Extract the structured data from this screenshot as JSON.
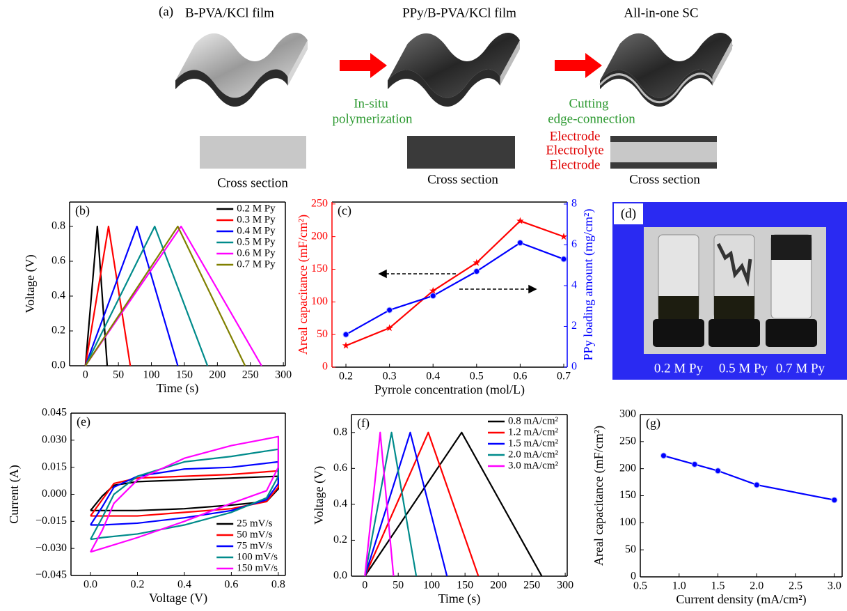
{
  "panel_a": {
    "label": "(a)",
    "titles": [
      "B-PVA/KCl film",
      "PPy/B-PVA/KCl film",
      "All-in-one SC"
    ],
    "steps": [
      [
        "In-situ",
        "polymerization"
      ],
      [
        "Cutting",
        "edge-connection"
      ]
    ],
    "cross_section": [
      "Cross section",
      "Cross section",
      "Cross section"
    ],
    "layers": [
      "Electrode",
      "Electrolyte",
      "Electrode"
    ]
  },
  "panel_d": {
    "label": "(d)",
    "captions": [
      "0.2 M Py",
      "0.5 M Py",
      "0.7 M Py"
    ]
  },
  "chart_data": [
    {
      "type": "line",
      "label": "(b)",
      "xlabel": "Time (s)",
      "ylabel": "Voltage (V)",
      "xlim": [
        -24,
        303
      ],
      "xticks": [
        0,
        50,
        100,
        150,
        200,
        250,
        300
      ],
      "ylim": [
        0,
        0.94
      ],
      "yticks": [
        {
          "value": 0,
          "label": "0.0"
        },
        0.2,
        0.4,
        0.6,
        0.8
      ],
      "legend": "upper right",
      "series": [
        {
          "name": "0.2 M Py",
          "color": "#000000",
          "x": [
            0,
            18,
            33
          ],
          "values": [
            0,
            0.8,
            0
          ]
        },
        {
          "name": "0.3 M Py",
          "color": "#ff0000",
          "x": [
            0,
            35,
            68
          ],
          "values": [
            0,
            0.8,
            0
          ]
        },
        {
          "name": "0.4 M Py",
          "color": "#0000ff",
          "x": [
            0,
            78,
            140
          ],
          "values": [
            0,
            0.8,
            0
          ]
        },
        {
          "name": "0.5 M Py",
          "color": "#008b8b",
          "x": [
            0,
            105,
            185
          ],
          "values": [
            0,
            0.8,
            0
          ]
        },
        {
          "name": "0.6 M Py",
          "color": "#ff00ff",
          "x": [
            0,
            145,
            267
          ],
          "values": [
            0,
            0.8,
            0
          ]
        },
        {
          "name": "0.7 M Py",
          "color": "#808000",
          "x": [
            0,
            140,
            242
          ],
          "values": [
            0,
            0.8,
            0
          ]
        }
      ]
    },
    {
      "type": "line",
      "label": "(c)",
      "xlabel": "Pyrrole concentration (mol/L)",
      "ylabel": "Areal capacitance (mF/cm²)",
      "y2label": "PPy loading amount (mg/cm²)",
      "x": [
        0.2,
        0.3,
        0.4,
        0.5,
        0.6,
        0.7
      ],
      "xlim": [
        0.168,
        0.708
      ],
      "xticks": [
        0.2,
        0.3,
        0.4,
        0.5,
        0.6,
        0.7
      ],
      "ylim": [
        0,
        253
      ],
      "yticks": [
        0,
        50,
        100,
        150,
        200,
        250
      ],
      "y2lim": [
        0,
        8.1
      ],
      "y2ticks": [
        0,
        2,
        4,
        6,
        8
      ],
      "series": [
        {
          "color": "#ff0000",
          "marker": "star",
          "values": [
            33,
            60,
            117,
            160,
            224,
            200
          ]
        },
        {
          "color": "#0000ff",
          "marker": "circle",
          "axis": "y2",
          "values": [
            1.6,
            2.8,
            3.5,
            4.7,
            6.1,
            5.3
          ]
        }
      ]
    },
    {
      "type": "line",
      "label": "(e)",
      "xlabel": "Voltage (V)",
      "ylabel": "Current (A)",
      "x": [
        0,
        0.05,
        0.1,
        0.2,
        0.4,
        0.6,
        0.8,
        0.8,
        0.75,
        0.6,
        0.4,
        0.2,
        0.05,
        0
      ],
      "xlim": [
        -0.083,
        0.83
      ],
      "xticks": [
        {
          "value": 0,
          "label": "0.0"
        },
        0.2,
        0.4,
        0.6,
        0.8
      ],
      "ylim": [
        -0.045,
        0.045
      ],
      "yticks": [
        {
          "value": -0.045,
          "label": "−0.045"
        },
        {
          "value": -0.03,
          "label": "−0.030"
        },
        {
          "value": -0.015,
          "label": "−0.015"
        },
        {
          "value": 0,
          "label": "0.000"
        },
        {
          "value": 0.015,
          "label": "0.015"
        },
        {
          "value": 0.03,
          "label": "0.030"
        },
        {
          "value": 0.045,
          "label": "0.045"
        }
      ],
      "legend": "lower right",
      "series": [
        {
          "name": "25 mV/s",
          "color": "#000000",
          "values": [
            -0.009,
            -0.001,
            0.005,
            0.007,
            0.008,
            0.009,
            0.01,
            0.003,
            -0.004,
            -0.006,
            -0.008,
            -0.009,
            -0.009,
            -0.009
          ]
        },
        {
          "name": "50 mV/s",
          "color": "#ff0000",
          "values": [
            -0.012,
            -0.003,
            0.006,
            0.009,
            0.01,
            0.011,
            0.013,
            0.004,
            -0.004,
            -0.008,
            -0.01,
            -0.012,
            -0.012,
            -0.012
          ]
        },
        {
          "name": "75 mV/s",
          "color": "#0000ff",
          "values": [
            -0.017,
            -0.007,
            0.004,
            0.01,
            0.014,
            0.015,
            0.018,
            0.006,
            -0.003,
            -0.009,
            -0.013,
            -0.016,
            -0.017,
            -0.017
          ]
        },
        {
          "name": "100 mV/s",
          "color": "#008b8b",
          "values": [
            -0.025,
            -0.013,
            0,
            0.01,
            0.018,
            0.021,
            0.025,
            0.01,
            -0.002,
            -0.01,
            -0.017,
            -0.022,
            -0.024,
            -0.025
          ]
        },
        {
          "name": "150 mV/s",
          "color": "#ff00ff",
          "values": [
            -0.032,
            -0.02,
            -0.005,
            0.008,
            0.02,
            0.027,
            0.032,
            0.015,
            0.002,
            -0.005,
            -0.015,
            -0.024,
            -0.03,
            -0.032
          ]
        }
      ]
    },
    {
      "type": "line",
      "label": "(f)",
      "xlabel": "Time (s)",
      "ylabel": "Voltage (V)",
      "xlim": [
        -20,
        303
      ],
      "xticks": [
        0,
        50,
        100,
        150,
        200,
        250,
        300
      ],
      "ylim": [
        0,
        0.9
      ],
      "yticks": [
        {
          "value": 0,
          "label": "0.0"
        },
        0.2,
        0.4,
        0.6,
        0.8
      ],
      "legend": "upper right",
      "series": [
        {
          "name": "0.8 mA/cm²",
          "color": "#000000",
          "x": [
            0,
            145,
            265
          ],
          "values": [
            0,
            0.8,
            0
          ]
        },
        {
          "name": "1.2 mA/cm²",
          "color": "#ff0000",
          "x": [
            0,
            95,
            170
          ],
          "values": [
            0,
            0.8,
            0
          ]
        },
        {
          "name": "1.5 mA/cm²",
          "color": "#0000ff",
          "x": [
            0,
            68,
            123
          ],
          "values": [
            0,
            0.8,
            0
          ]
        },
        {
          "name": "2.0 mA/cm²",
          "color": "#008b8b",
          "x": [
            0,
            40,
            77
          ],
          "values": [
            0,
            0.8,
            0
          ]
        },
        {
          "name": "3.0 mA/cm²",
          "color": "#ff00ff",
          "x": [
            0,
            23,
            43
          ],
          "values": [
            0,
            0.8,
            0
          ]
        }
      ]
    },
    {
      "type": "line",
      "label": "(g)",
      "xlabel": "Current density (mA/cm²)",
      "ylabel": "Areal capacitance (mF/cm²)",
      "x": [
        0.8,
        1.2,
        1.5,
        2.0,
        3.0
      ],
      "xlim": [
        0.5,
        3.1
      ],
      "xticks": [
        0.5,
        {
          "value": 1,
          "label": "1.0"
        },
        1.5,
        {
          "value": 2,
          "label": "2.0"
        },
        2.5,
        {
          "value": 3,
          "label": "3.0"
        }
      ],
      "ylim": [
        0,
        300
      ],
      "yticks": [
        0,
        50,
        100,
        150,
        200,
        250,
        300
      ],
      "series": [
        {
          "color": "#0000ff",
          "marker": "circle",
          "values": [
            224,
            208,
            196,
            170,
            142
          ]
        }
      ]
    }
  ]
}
